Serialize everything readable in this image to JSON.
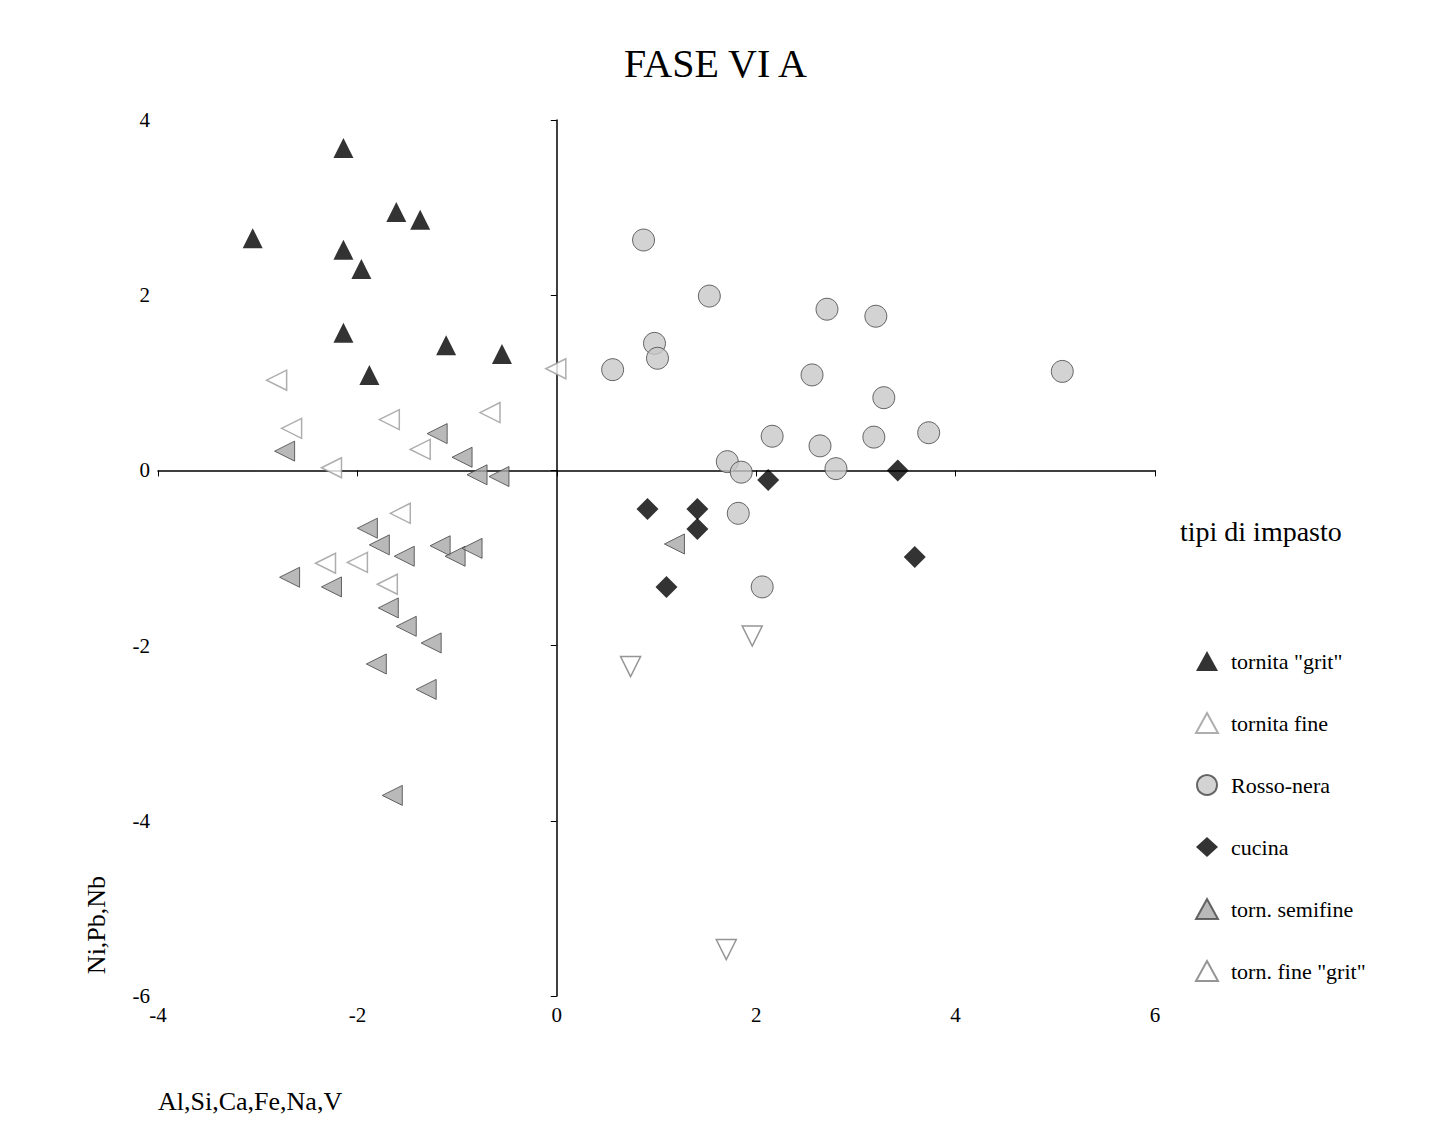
{
  "chart_data": {
    "type": "scatter",
    "title": "FASE VI A",
    "x_label": "Al,Si,Ca,Fe,Na,V",
    "y_label": "Ni,Pb,Nb",
    "legend_title": "tipi di impasto",
    "legend": "right",
    "grid": false,
    "xlim": [
      -4,
      6
    ],
    "xticks": [
      -4,
      -2,
      0,
      2,
      4,
      6
    ],
    "ylim": [
      -6,
      4
    ],
    "yticks": [
      -6,
      -4,
      -2,
      0,
      2,
      4
    ],
    "series": [
      {
        "name": "tornita \"grit\"",
        "color": "#000000",
        "marker": "triangle",
        "x": [
          -3.05,
          -2.14,
          -2.14,
          -1.96,
          -1.61,
          -1.37,
          -2.14,
          -1.88,
          -1.11,
          -0.55
        ],
        "values": [
          2.65,
          3.68,
          2.52,
          2.3,
          2.95,
          2.86,
          1.57,
          1.09,
          1.43,
          1.33
        ]
      },
      {
        "name": "tornita fine",
        "color": "#9a9a9a",
        "marker": "triangle-left-open",
        "x": [
          -2.81,
          -2.66,
          -2.26,
          -1.68,
          -1.37,
          -0.67,
          -0.01,
          -1.57,
          -2.0,
          -1.7,
          -2.32
        ],
        "values": [
          1.03,
          0.48,
          0.03,
          0.58,
          0.24,
          0.66,
          1.16,
          -0.49,
          -1.05,
          -1.3,
          -1.06
        ]
      },
      {
        "name": "Rosso-nera",
        "color": "#c8c8c8",
        "marker": "circle",
        "x": [
          0.87,
          1.53,
          2.71,
          3.2,
          0.98,
          1.01,
          0.56,
          2.56,
          5.07,
          3.28,
          2.16,
          3.18,
          3.73,
          2.64,
          1.71,
          1.85,
          2.8,
          1.82,
          2.06
        ],
        "values": [
          2.63,
          1.99,
          1.84,
          1.76,
          1.45,
          1.28,
          1.15,
          1.09,
          1.13,
          0.83,
          0.39,
          0.38,
          0.43,
          0.28,
          0.1,
          -0.02,
          0.02,
          -0.49,
          -1.33
        ]
      },
      {
        "name": "cucina",
        "color": "#000000",
        "marker": "diamond",
        "x": [
          0.91,
          1.41,
          1.41,
          1.1,
          2.12,
          3.42,
          3.59
        ],
        "values": [
          -0.44,
          -0.44,
          -0.67,
          -1.33,
          -0.11,
          0.0,
          -0.99
        ]
      },
      {
        "name": "torn. semifine",
        "color": "#a8a8a8",
        "marker": "triangle-left",
        "x": [
          -2.73,
          -1.2,
          -0.95,
          -0.8,
          -0.58,
          -1.9,
          -1.78,
          -1.53,
          -1.17,
          -1.02,
          -0.85,
          -2.68,
          -2.26,
          -1.69,
          -1.51,
          -1.26,
          -1.81,
          -1.31,
          -1.65,
          1.18
        ],
        "values": [
          0.22,
          0.42,
          0.15,
          -0.05,
          -0.07,
          -0.66,
          -0.85,
          -0.98,
          -0.86,
          -0.98,
          -0.89,
          -1.22,
          -1.33,
          -1.57,
          -1.78,
          -1.97,
          -2.21,
          -2.5,
          -3.71,
          -0.84
        ]
      },
      {
        "name": "torn. fine \"grit\"",
        "color": "#7a7a7a",
        "marker": "triangle-down-open",
        "x": [
          0.74,
          1.96,
          1.7
        ],
        "values": [
          -2.24,
          -1.89,
          -5.47
        ]
      }
    ]
  }
}
